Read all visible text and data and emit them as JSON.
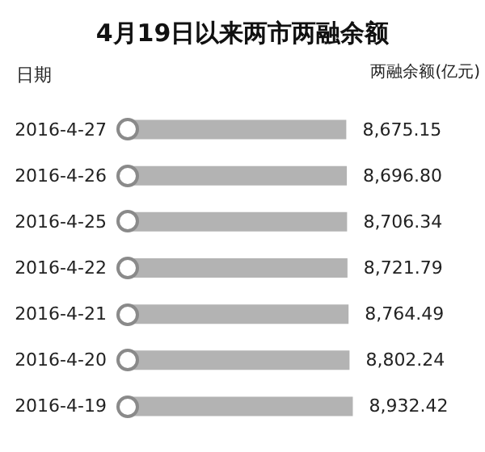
{
  "chart_data": {
    "type": "bar",
    "orientation": "horizontal",
    "title": "4月19日以来两市两融余额",
    "ylabel": "日期",
    "xlabel": "两融余额(亿元)",
    "categories": [
      "2016-4-27",
      "2016-4-26",
      "2016-4-25",
      "2016-4-22",
      "2016-4-21",
      "2016-4-20",
      "2016-4-19"
    ],
    "values": [
      8675.15,
      8696.8,
      8706.34,
      8721.79,
      8764.49,
      8802.24,
      8932.42
    ],
    "value_labels": [
      "8,675.15",
      "8,696.80",
      "8,706.34",
      "8,721.79",
      "8,764.49",
      "8,802.24",
      "8,932.42"
    ],
    "color": "#b3b3b3",
    "tick_labels": "y",
    "grid": false
  }
}
